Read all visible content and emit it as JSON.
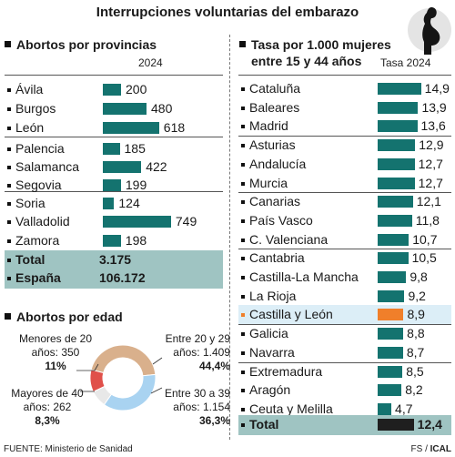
{
  "title": "Interrupciones voluntarias del embarazo",
  "left": {
    "provinces_title": "Abortos por provincias",
    "year_label": "2024",
    "total_label": "Total",
    "total_value": "3.175",
    "spain_label": "España",
    "spain_value": "106.172",
    "age_title": "Abortos por edad"
  },
  "right": {
    "title_line1": "Tasa por 1.000 mujeres",
    "title_line2": "entre 15 y 44 años",
    "year_label": "Tasa 2024",
    "total_label": "Total",
    "total_value": "12,4"
  },
  "chart_data": [
    {
      "type": "bar",
      "orientation": "horizontal",
      "title": "Abortos por provincias",
      "subtitle": "2024",
      "categories": [
        "Ávila",
        "Burgos",
        "León",
        "Palencia",
        "Salamanca",
        "Segovia",
        "Soria",
        "Valladolid",
        "Zamora"
      ],
      "values": [
        200,
        480,
        618,
        185,
        422,
        199,
        124,
        749,
        198
      ],
      "labels": [
        "200",
        "480",
        "618",
        "185",
        "422",
        "199",
        "124",
        "749",
        "198"
      ],
      "totals": [
        {
          "label": "Total",
          "value": 3175
        },
        {
          "label": "España",
          "value": 106172
        }
      ],
      "color": "#14736f"
    },
    {
      "type": "bar",
      "orientation": "horizontal",
      "title": "Tasa por 1.000 mujeres entre 15 y 44 años",
      "subtitle": "Tasa 2024",
      "categories": [
        "Cataluña",
        "Baleares",
        "Madrid",
        "Asturias",
        "Andalucía",
        "Murcia",
        "Canarias",
        "País Vasco",
        "C. Valenciana",
        "Cantabria",
        "Castilla-La Mancha",
        "La Rioja",
        "Castilla y León",
        "Galicia",
        "Navarra",
        "Extremadura",
        "Aragón",
        "Ceuta y Melilla"
      ],
      "values": [
        14.9,
        13.9,
        13.6,
        12.9,
        12.7,
        12.7,
        12.1,
        11.8,
        10.7,
        10.5,
        9.8,
        9.2,
        8.9,
        8.8,
        8.7,
        8.5,
        8.2,
        4.7
      ],
      "labels": [
        "14,9",
        "13,9",
        "13,6",
        "12,9",
        "12,7",
        "12,7",
        "12,1",
        "11,8",
        "10,7",
        "10,5",
        "9,8",
        "9,2",
        "8,9",
        "8,8",
        "8,7",
        "8,5",
        "8,2",
        "4,7"
      ],
      "highlight": "Castilla y León",
      "highlight_color": "#f07f2a",
      "total": {
        "label": "Total",
        "value": 12.4,
        "text": "12,4"
      },
      "color": "#14736f"
    },
    {
      "type": "pie",
      "title": "Abortos por edad",
      "slices": [
        {
          "label": "Menores de 20 años",
          "count_text": "350",
          "value": 11,
          "pct_text": "11%",
          "color": "#e0504a"
        },
        {
          "label": "Entre 20 y 29 años",
          "count_text": "1.409",
          "value": 44.4,
          "pct_text": "44,4%",
          "color": "#d9b08c"
        },
        {
          "label": "Entre 30 a 39 años",
          "count_text": "1.154",
          "value": 36.3,
          "pct_text": "36,3%",
          "color": "#a9d3f1"
        },
        {
          "label": "Mayores de 40 años",
          "count_text": "262",
          "value": 8.3,
          "pct_text": "8,3%",
          "color": "#e8e8e8"
        }
      ]
    }
  ],
  "footer": {
    "source": "FUENTE: Ministerio de Sanidad",
    "credit_prefix": "FS / ",
    "credit_brand": "ICAL"
  },
  "icons": {
    "pregnant": "pregnant-woman-silhouette-icon"
  }
}
